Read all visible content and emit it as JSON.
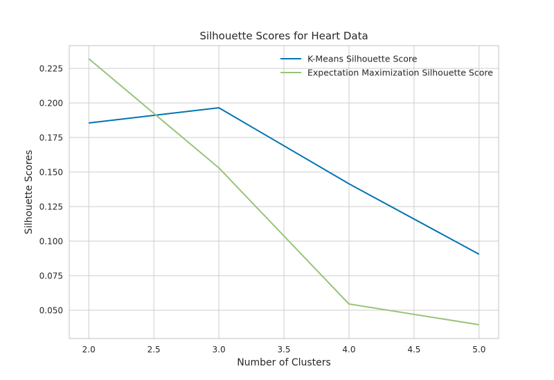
{
  "chart_data": {
    "type": "line",
    "title": "Silhouette Scores for Heart Data",
    "xlabel": "Number of Clusters",
    "ylabel": "Silhouette Scores",
    "x": [
      2.0,
      3.0,
      4.0,
      5.0
    ],
    "xlim": [
      1.85,
      5.15
    ],
    "ylim": [
      0.0295,
      0.2415
    ],
    "xticks": [
      "2.0",
      "2.5",
      "3.0",
      "3.5",
      "4.0",
      "4.5",
      "5.0"
    ],
    "yticks": [
      "0.050",
      "0.075",
      "0.100",
      "0.125",
      "0.150",
      "0.175",
      "0.200",
      "0.225"
    ],
    "grid": true,
    "legend_position": "top-right",
    "series": [
      {
        "name": "K-Means Silhouette Score",
        "color": "#0072B2",
        "values": [
          0.1855,
          0.1965,
          0.1415,
          0.0905
        ]
      },
      {
        "name": "Expectation Maximization Silhouette Score",
        "color": "#97C378",
        "values": [
          0.232,
          0.153,
          0.0545,
          0.0395
        ]
      }
    ]
  }
}
